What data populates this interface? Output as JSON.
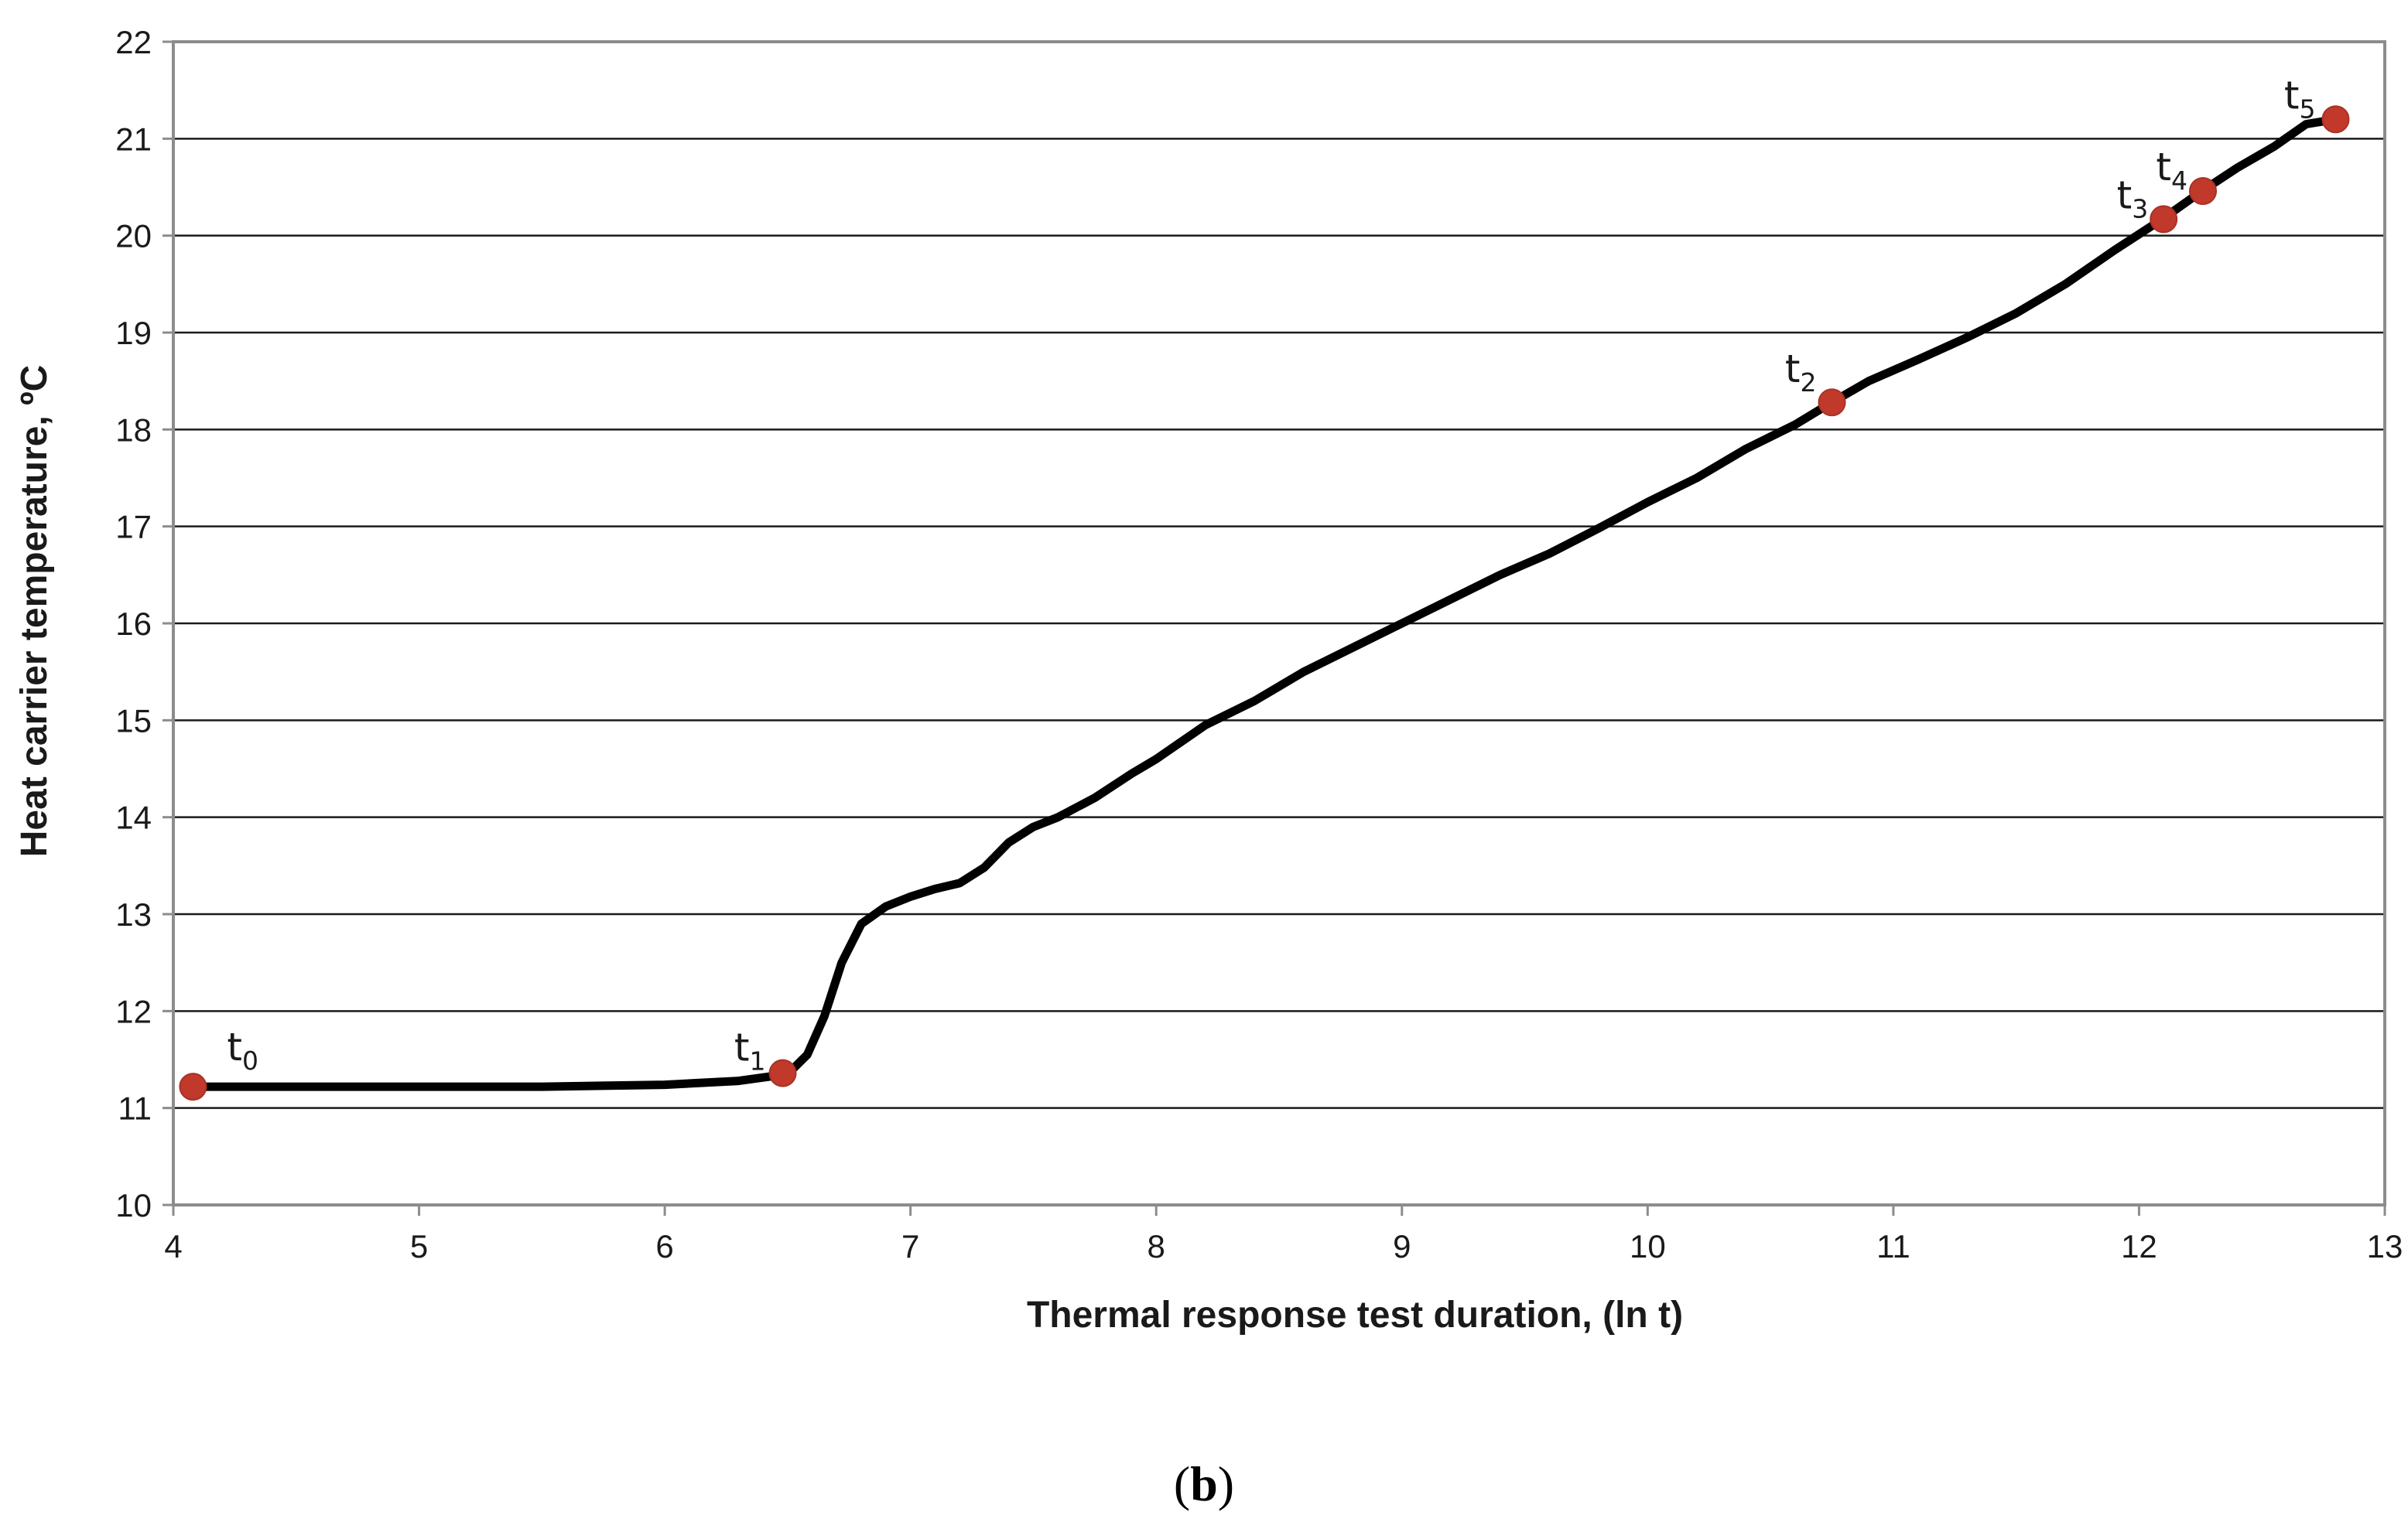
{
  "chart_data": {
    "type": "line",
    "xlabel": "Thermal response test duration, (ln t)",
    "ylabel": "Heat carrier temperature, ºC",
    "xlim": [
      4,
      13
    ],
    "ylim": [
      10,
      22
    ],
    "x_ticks": [
      "4",
      "5",
      "6",
      "7",
      "8",
      "9",
      "10",
      "11",
      "12",
      "13"
    ],
    "y_ticks": [
      "10",
      "11",
      "12",
      "13",
      "14",
      "15",
      "16",
      "17",
      "18",
      "19",
      "20",
      "21",
      "22"
    ],
    "grid": "horizontal",
    "line_color": "#000000",
    "marker_color": "#c0392b",
    "series": [
      {
        "x": [
          4.08,
          4.5,
          5.0,
          5.5,
          6.0,
          6.3,
          6.5,
          6.58,
          6.65,
          6.72,
          6.8,
          6.9,
          7.0,
          7.1,
          7.2,
          7.3,
          7.4,
          7.5,
          7.6,
          7.75,
          7.9,
          8.0,
          8.2,
          8.4,
          8.6,
          8.8,
          9.0,
          9.2,
          9.4,
          9.6,
          9.8,
          10.0,
          10.2,
          10.4,
          10.6,
          10.75,
          10.9,
          11.1,
          11.3,
          11.5,
          11.7,
          11.9,
          12.1,
          12.25,
          12.4,
          12.55,
          12.68,
          12.8
        ],
        "y": [
          11.22,
          11.22,
          11.22,
          11.22,
          11.24,
          11.28,
          11.35,
          11.55,
          11.95,
          12.5,
          12.9,
          13.08,
          13.18,
          13.26,
          13.32,
          13.48,
          13.74,
          13.9,
          14.0,
          14.2,
          14.45,
          14.6,
          14.95,
          15.2,
          15.5,
          15.75,
          16.0,
          16.25,
          16.5,
          16.72,
          16.98,
          17.25,
          17.5,
          17.8,
          18.05,
          18.28,
          18.5,
          18.72,
          18.95,
          19.2,
          19.5,
          19.85,
          20.18,
          20.45,
          20.7,
          20.92,
          21.15,
          21.2
        ]
      }
    ],
    "points": [
      {
        "label": "t",
        "sub": "0",
        "x": 4.08,
        "y": 11.22
      },
      {
        "label": "t",
        "sub": "1",
        "x": 6.48,
        "y": 11.36
      },
      {
        "label": "t",
        "sub": "2",
        "x": 10.75,
        "y": 18.28
      },
      {
        "label": "t",
        "sub": "3",
        "x": 12.1,
        "y": 20.17
      },
      {
        "label": "t",
        "sub": "4",
        "x": 12.26,
        "y": 20.46
      },
      {
        "label": "t",
        "sub": "5",
        "x": 12.8,
        "y": 21.2
      }
    ]
  },
  "caption": {
    "open": "(",
    "letter": "b",
    "close": ")"
  }
}
